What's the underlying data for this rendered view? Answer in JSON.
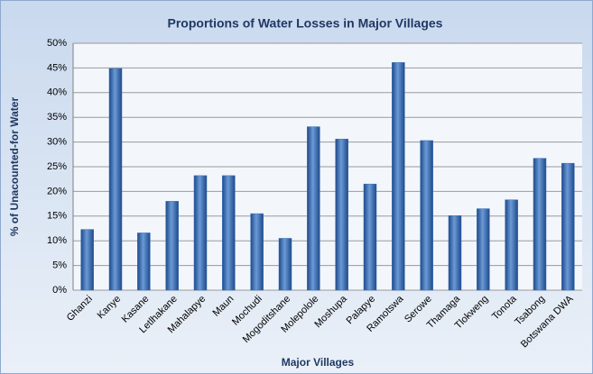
{
  "chart_data": {
    "type": "bar",
    "title": "Proportions of Water Losses in Major Villages",
    "x_label": "Major Villages",
    "y_label": "% of Unacounted-for Water",
    "categories": [
      "Ghanzi",
      "Kanye",
      "Kasane",
      "Letlhakane",
      "Mahalapye",
      "Maun",
      "Mochudi",
      "Mogoditshane",
      "Molepolole",
      "Moshupa",
      "Palapye",
      "Ramotswa",
      "Serowe",
      "Thamaga",
      "Tlokweng",
      "Tonota",
      "Tsabong",
      "Botswana DWA"
    ],
    "values": [
      12.3,
      44.9,
      11.6,
      18,
      23.2,
      23.2,
      15.5,
      10.5,
      33.1,
      30.6,
      21.5,
      46.1,
      30.3,
      15.1,
      16.5,
      18.3,
      26.7,
      25.7
    ],
    "color": "#3a6fb5",
    "ylim": [
      0,
      50
    ],
    "yticks": [
      {
        "value": 0,
        "label": "0%"
      },
      {
        "value": 5,
        "label": "5%"
      },
      {
        "value": 10,
        "label": "10%"
      },
      {
        "value": 15,
        "label": "15%"
      },
      {
        "value": 20,
        "label": "20%"
      },
      {
        "value": 25,
        "label": "25%"
      },
      {
        "value": 30,
        "label": "30%"
      },
      {
        "value": 35,
        "label": "35%"
      },
      {
        "value": 40,
        "label": "40%"
      },
      {
        "value": 45,
        "label": "45%"
      },
      {
        "value": 50,
        "label": "50%"
      }
    ],
    "grid": true
  }
}
